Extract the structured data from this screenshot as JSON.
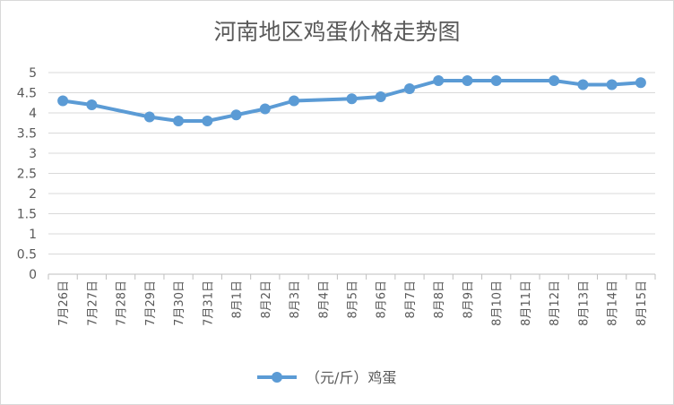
{
  "chart_data": {
    "type": "line",
    "title": "河南地区鸡蛋价格走势图",
    "xlabel": "",
    "ylabel": "",
    "ylim": [
      0,
      5
    ],
    "yticks": [
      "0",
      "0.5",
      "1",
      "1.5",
      "2",
      "2.5",
      "3",
      "3.5",
      "4",
      "4.5",
      "5"
    ],
    "categories": [
      "7月26日",
      "7月27日",
      "7月28日",
      "7月29日",
      "7月30日",
      "7月31日",
      "8月1日",
      "8月2日",
      "8月3日",
      "8月4日",
      "8月5日",
      "8月6日",
      "8月7日",
      "8月8日",
      "8月9日",
      "8月10日",
      "8月11日",
      "8月12日",
      "8月13日",
      "8月14日",
      "8月15日"
    ],
    "series": [
      {
        "name": "（元/斤）鸡蛋",
        "color": "#5b9bd5",
        "values": [
          4.3,
          4.2,
          null,
          3.9,
          3.8,
          3.8,
          3.95,
          4.1,
          4.3,
          null,
          4.35,
          4.4,
          4.6,
          4.8,
          4.8,
          4.8,
          null,
          4.8,
          4.7,
          4.7,
          4.75
        ]
      }
    ],
    "grid": true,
    "legend": "bottom"
  }
}
